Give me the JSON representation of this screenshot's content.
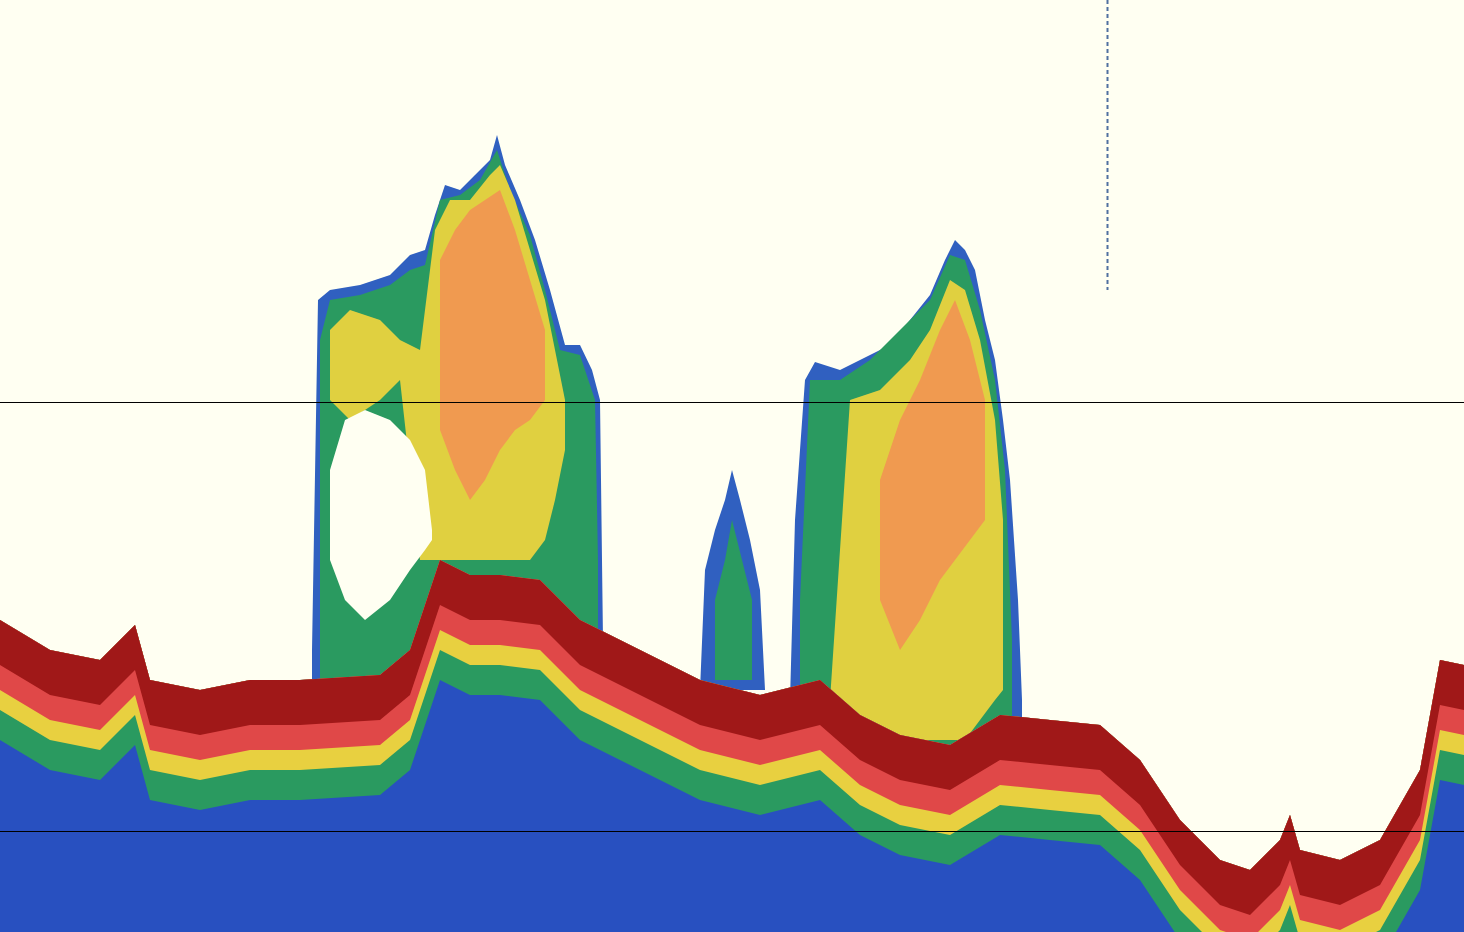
{
  "chart_data": {
    "type": "echogram",
    "tick_labels": false,
    "xlim": [
      0,
      1464
    ],
    "ylim": [
      932,
      0
    ],
    "layers": [
      {
        "color": "#3060c0",
        "x": [
          312,
          318,
          330,
          360,
          390,
          410,
          425,
          435,
          445,
          460,
          475,
          490,
          497,
          505,
          520,
          535,
          550,
          565,
          580,
          592,
          600,
          603
        ],
        "y1": [
          650,
          300,
          290,
          285,
          275,
          255,
          250,
          215,
          185,
          190,
          175,
          160,
          135,
          165,
          200,
          240,
          290,
          345,
          345,
          370,
          400,
          640
        ],
        "y2": 700
      },
      {
        "color": "#2a9a60",
        "x": [
          320,
          330,
          360,
          390,
          410,
          425,
          440,
          460,
          480,
          497,
          510,
          530,
          545,
          560,
          580,
          595,
          598
        ],
        "y1": [
          340,
          300,
          295,
          285,
          270,
          265,
          200,
          195,
          180,
          150,
          190,
          235,
          290,
          350,
          355,
          400,
          560
        ],
        "y2": 700
      },
      {
        "color": "#e0d040",
        "x": [
          330,
          350,
          380,
          400,
          420,
          435,
          450,
          470,
          490,
          500,
          515,
          530,
          545,
          555,
          565
        ],
        "y1": [
          330,
          310,
          320,
          340,
          350,
          230,
          200,
          200,
          175,
          165,
          200,
          250,
          300,
          350,
          400
        ],
        "y2": [
          400,
          420,
          400,
          380,
          560,
          560,
          560,
          560,
          560,
          560,
          560,
          560,
          540,
          500,
          450
        ]
      },
      {
        "color": "#f09a50",
        "x": [
          440,
          455,
          470,
          485,
          500,
          515,
          530,
          545
        ],
        "y1": [
          260,
          230,
          210,
          200,
          190,
          230,
          280,
          330
        ],
        "y2": [
          430,
          470,
          500,
          480,
          450,
          430,
          420,
          400
        ]
      },
      {
        "color": "#fffff2",
        "x": [
          330,
          345,
          365,
          390,
          410,
          425,
          432
        ],
        "y1": [
          470,
          420,
          410,
          420,
          440,
          470,
          530
        ],
        "y2": [
          560,
          600,
          620,
          600,
          570,
          550,
          540
        ]
      },
      {
        "color": "#3060c0",
        "x": [
          700,
          705,
          715,
          725,
          732,
          740,
          750,
          760,
          765
        ],
        "y1": [
          690,
          570,
          530,
          500,
          470,
          500,
          540,
          590,
          690
        ],
        "y2": 690
      },
      {
        "color": "#2a9a60",
        "x": [
          715,
          725,
          732,
          742,
          752
        ],
        "y1": [
          600,
          560,
          520,
          560,
          600
        ],
        "y2": 680
      },
      {
        "color": "#3060c0",
        "x": [
          790,
          795,
          805,
          815,
          840,
          870,
          890,
          910,
          930,
          945,
          955,
          965,
          975,
          985,
          995,
          1003,
          1010,
          1018,
          1022
        ],
        "y1": [
          700,
          520,
          380,
          362,
          370,
          355,
          345,
          320,
          295,
          260,
          240,
          250,
          270,
          320,
          360,
          420,
          480,
          600,
          700
        ],
        "y2": 760
      },
      {
        "color": "#2a9a60",
        "x": [
          800,
          810,
          840,
          870,
          900,
          930,
          950,
          965,
          980,
          995,
          1005,
          1012
        ],
        "y1": [
          600,
          380,
          380,
          360,
          330,
          300,
          255,
          260,
          310,
          380,
          470,
          640
        ],
        "y2": 760
      },
      {
        "color": "#e0d040",
        "x": [
          830,
          850,
          880,
          910,
          930,
          950,
          965,
          980,
          995,
          1003
        ],
        "y1": [
          700,
          400,
          390,
          360,
          330,
          280,
          290,
          340,
          420,
          520
        ],
        "y2": [
          720,
          720,
          730,
          740,
          740,
          740,
          740,
          720,
          700,
          690
        ]
      },
      {
        "color": "#f09a50",
        "x": [
          880,
          900,
          920,
          940,
          955,
          970,
          985
        ],
        "y1": [
          480,
          420,
          380,
          330,
          300,
          340,
          400
        ],
        "y2": [
          600,
          650,
          620,
          580,
          560,
          540,
          520
        ]
      },
      {
        "color": "#2850c0",
        "x": [
          0,
          50,
          100,
          135,
          150,
          200,
          250,
          300,
          380,
          410,
          440,
          470,
          500,
          540,
          580,
          620,
          700,
          760,
          820,
          860,
          900,
          950,
          1000,
          1050,
          1100,
          1140,
          1180,
          1220,
          1250,
          1280,
          1290,
          1300,
          1340,
          1380,
          1420,
          1440,
          1464
        ],
        "y1": [
          620,
          650,
          660,
          625,
          680,
          690,
          680,
          680,
          675,
          650,
          560,
          575,
          575,
          580,
          620,
          640,
          680,
          695,
          680,
          715,
          735,
          745,
          715,
          720,
          725,
          760,
          820,
          860,
          870,
          840,
          815,
          850,
          860,
          840,
          770,
          660,
          665
        ],
        "y2": 932
      },
      {
        "color": "#2a9a60",
        "x": [
          0,
          50,
          100,
          135,
          150,
          200,
          250,
          300,
          380,
          410,
          440,
          470,
          500,
          540,
          580,
          620,
          700,
          760,
          820,
          860,
          900,
          950,
          1000,
          1050,
          1100,
          1140,
          1180,
          1220,
          1250,
          1280,
          1290,
          1300,
          1340,
          1380,
          1420,
          1440,
          1464
        ],
        "y1": [
          620,
          650,
          660,
          625,
          680,
          690,
          680,
          680,
          675,
          650,
          560,
          575,
          575,
          580,
          620,
          640,
          680,
          695,
          680,
          715,
          735,
          745,
          715,
          720,
          725,
          760,
          820,
          860,
          870,
          840,
          815,
          850,
          860,
          840,
          770,
          660,
          665
        ],
        "y2": [
          740,
          770,
          780,
          745,
          800,
          810,
          800,
          800,
          795,
          770,
          680,
          695,
          695,
          700,
          740,
          760,
          800,
          815,
          800,
          835,
          855,
          865,
          835,
          840,
          845,
          880,
          940,
          980,
          990,
          960,
          935,
          970,
          980,
          960,
          890,
          780,
          785
        ]
      },
      {
        "color": "#e8d040",
        "x": [
          0,
          50,
          100,
          135,
          150,
          200,
          250,
          300,
          380,
          410,
          440,
          470,
          500,
          540,
          580,
          620,
          700,
          760,
          820,
          860,
          900,
          950,
          1000,
          1050,
          1100,
          1140,
          1180,
          1220,
          1250,
          1280,
          1290,
          1300,
          1340,
          1380,
          1420,
          1440,
          1464
        ],
        "y1": [
          620,
          650,
          660,
          625,
          680,
          690,
          680,
          680,
          675,
          650,
          560,
          575,
          575,
          580,
          620,
          640,
          680,
          695,
          680,
          715,
          735,
          745,
          715,
          720,
          725,
          760,
          820,
          860,
          870,
          840,
          815,
          850,
          860,
          840,
          770,
          660,
          665
        ],
        "y2": [
          710,
          740,
          750,
          715,
          770,
          780,
          770,
          770,
          765,
          740,
          650,
          665,
          665,
          670,
          710,
          730,
          770,
          785,
          770,
          805,
          825,
          835,
          805,
          810,
          815,
          850,
          910,
          950,
          960,
          930,
          905,
          940,
          950,
          930,
          860,
          750,
          755
        ]
      },
      {
        "color": "#e04848",
        "x": [
          0,
          50,
          100,
          135,
          150,
          200,
          250,
          300,
          380,
          410,
          440,
          470,
          500,
          540,
          580,
          620,
          700,
          760,
          820,
          860,
          900,
          950,
          1000,
          1050,
          1100,
          1140,
          1180,
          1220,
          1250,
          1280,
          1290,
          1300,
          1340,
          1380,
          1420,
          1440,
          1464
        ],
        "y1": [
          620,
          650,
          660,
          625,
          680,
          690,
          680,
          680,
          675,
          650,
          560,
          575,
          575,
          580,
          620,
          640,
          680,
          695,
          680,
          715,
          735,
          745,
          715,
          720,
          725,
          760,
          820,
          860,
          870,
          840,
          815,
          850,
          860,
          840,
          770,
          660,
          665
        ],
        "y2": [
          690,
          720,
          730,
          695,
          750,
          760,
          750,
          750,
          745,
          720,
          630,
          645,
          645,
          650,
          690,
          710,
          750,
          765,
          750,
          785,
          805,
          815,
          785,
          790,
          795,
          830,
          890,
          930,
          940,
          910,
          885,
          920,
          930,
          910,
          840,
          730,
          735
        ]
      },
      {
        "color": "#a01818",
        "x": [
          0,
          50,
          100,
          135,
          150,
          200,
          250,
          300,
          380,
          410,
          440,
          470,
          500,
          540,
          580,
          620,
          700,
          760,
          820,
          860,
          900,
          950,
          1000,
          1050,
          1100,
          1140,
          1180,
          1220,
          1250,
          1280,
          1290,
          1300,
          1340,
          1380,
          1420,
          1440,
          1464
        ],
        "y1": [
          620,
          650,
          660,
          625,
          680,
          690,
          680,
          680,
          675,
          650,
          560,
          575,
          575,
          580,
          620,
          640,
          680,
          695,
          680,
          715,
          735,
          745,
          715,
          720,
          725,
          760,
          820,
          860,
          870,
          840,
          815,
          850,
          860,
          840,
          770,
          660,
          665
        ],
        "y2": [
          665,
          695,
          705,
          670,
          725,
          735,
          725,
          725,
          720,
          695,
          605,
          620,
          620,
          625,
          665,
          685,
          725,
          740,
          725,
          760,
          780,
          790,
          760,
          765,
          770,
          805,
          865,
          905,
          915,
          885,
          860,
          895,
          905,
          885,
          815,
          705,
          710
        ]
      }
    ],
    "rules_y": [
      402,
      831
    ],
    "rules_x": [
      {
        "x": 1107,
        "y1": 0,
        "y2": 290,
        "color": "#5070a0",
        "line_style": "dashed"
      }
    ]
  }
}
